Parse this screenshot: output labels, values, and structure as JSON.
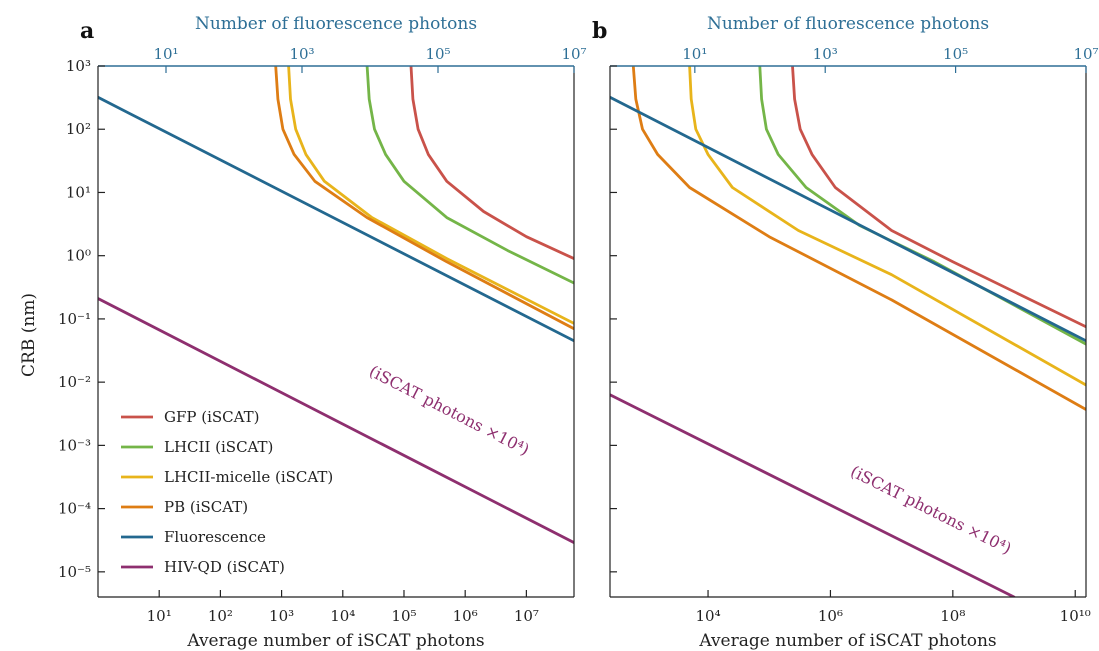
{
  "figure": {
    "ylabel": "CRB (nm)"
  },
  "legend_items": [
    {
      "label": "GFP (iSCAT)",
      "color": "#c9524a"
    },
    {
      "label": "LHCII (iSCAT)",
      "color": "#74b548"
    },
    {
      "label": "LHCII-micelle (iSCAT)",
      "color": "#e8b41b"
    },
    {
      "label": "PB (iSCAT)",
      "color": "#de7d14"
    },
    {
      "label": "Fluorescence",
      "color": "#23688f"
    },
    {
      "label": "HIV-QD (iSCAT)",
      "color": "#8e2f6f"
    }
  ],
  "chart_data": [
    {
      "type": "line",
      "panel_label": "a",
      "xlabel": "Average number of iSCAT photons",
      "x2label": "Number of fluorescence photons",
      "ylabel": "CRB (nm)",
      "xscale": "log",
      "yscale": "log",
      "xlim": [
        1,
        60000000.0
      ],
      "x2lim": [
        1,
        10000000.0
      ],
      "ylim": [
        4e-06,
        1000
      ],
      "x_ticks": [
        {
          "value": 10,
          "label": "10¹"
        },
        {
          "value": 100,
          "label": "10²"
        },
        {
          "value": 1000,
          "label": "10³"
        },
        {
          "value": 10000,
          "label": "10⁴"
        },
        {
          "value": 100000,
          "label": "10⁵"
        },
        {
          "value": 1000000,
          "label": "10⁶"
        },
        {
          "value": 10000000,
          "label": "10⁷"
        }
      ],
      "x2_ticks": [
        {
          "value": 10,
          "label": "10¹"
        },
        {
          "value": 1000,
          "label": "10³"
        },
        {
          "value": 100000,
          "label": "10⁵"
        },
        {
          "value": 10000000,
          "label": "10⁷"
        }
      ],
      "y_ticks": [
        {
          "value": 1e-05,
          "label": "10⁻⁵"
        },
        {
          "value": 0.0001,
          "label": "10⁻⁴"
        },
        {
          "value": 0.001,
          "label": "10⁻³"
        },
        {
          "value": 0.01,
          "label": "10⁻²"
        },
        {
          "value": 0.1,
          "label": "10⁻¹"
        },
        {
          "value": 1,
          "label": "10⁰"
        },
        {
          "value": 10,
          "label": "10¹"
        },
        {
          "value": 100,
          "label": "10²"
        },
        {
          "value": 1000,
          "label": "10³"
        }
      ],
      "series": [
        {
          "name": "GFP (iSCAT)",
          "color": "#c9524a",
          "points": [
            [
              130000.0,
              1000
            ],
            [
              140000.0,
              300
            ],
            [
              170000.0,
              100
            ],
            [
              250000.0,
              40
            ],
            [
              500000.0,
              15
            ],
            [
              2000000.0,
              5
            ],
            [
              10000000.0,
              2
            ],
            [
              60000000.0,
              0.9
            ]
          ]
        },
        {
          "name": "LHCII (iSCAT)",
          "color": "#74b548",
          "points": [
            [
              25000.0,
              1000
            ],
            [
              27000.0,
              300
            ],
            [
              33000.0,
              100
            ],
            [
              50000.0,
              40
            ],
            [
              100000.0,
              15
            ],
            [
              500000.0,
              4
            ],
            [
              5000000.0,
              1.2
            ],
            [
              60000000.0,
              0.37
            ]
          ]
        },
        {
          "name": "LHCII-micelle (iSCAT)",
          "color": "#e8b41b",
          "points": [
            [
              1300,
              1000
            ],
            [
              1400,
              300
            ],
            [
              1700,
              100
            ],
            [
              2500,
              40
            ],
            [
              5000,
              15
            ],
            [
              30000.0,
              4
            ],
            [
              500000.0,
              0.9
            ],
            [
              60000000.0,
              0.085
            ]
          ]
        },
        {
          "name": "PB (iSCAT)",
          "color": "#de7d14",
          "points": [
            [
              800,
              1000
            ],
            [
              870,
              300
            ],
            [
              1050,
              100
            ],
            [
              1600,
              40
            ],
            [
              3500,
              15
            ],
            [
              25000.0,
              4
            ],
            [
              500000.0,
              0.8
            ],
            [
              60000000.0,
              0.07
            ]
          ]
        },
        {
          "name": "Fluorescence",
          "color": "#23688f",
          "points": [
            [
              1,
              320
            ],
            [
              60000000.0,
              0.045
            ]
          ]
        },
        {
          "name": "HIV-QD (iSCAT)",
          "color": "#8e2f6f",
          "points": [
            [
              1,
              0.21
            ],
            [
              60000000.0,
              2.9e-05
            ]
          ]
        }
      ],
      "annotation": {
        "text": "(iSCAT photons ×10⁴)",
        "color": "#8e2f6f",
        "x": 500000.0,
        "y": 0.003
      }
    },
    {
      "type": "line",
      "panel_label": "b",
      "xlabel": "Average number of iSCAT photons",
      "x2label": "Number of fluorescence photons",
      "ylabel": "",
      "xscale": "log",
      "yscale": "log",
      "xlim": [
        250,
        15000000000.0
      ],
      "x2lim": [
        0.5,
        10000000.0
      ],
      "ylim": [
        4e-06,
        1000
      ],
      "x_ticks": [
        {
          "value": 10000,
          "label": "10⁴"
        },
        {
          "value": 1000000,
          "label": "10⁶"
        },
        {
          "value": 100000000,
          "label": "10⁸"
        },
        {
          "value": 10000000000,
          "label": "10¹⁰"
        }
      ],
      "x2_ticks": [
        {
          "value": 10,
          "label": "10¹"
        },
        {
          "value": 1000,
          "label": "10³"
        },
        {
          "value": 100000,
          "label": "10⁵"
        },
        {
          "value": 10000000,
          "label": "10⁷"
        }
      ],
      "y_ticks": [
        {
          "value": 1e-05,
          "label": ""
        },
        {
          "value": 0.0001,
          "label": ""
        },
        {
          "value": 0.001,
          "label": ""
        },
        {
          "value": 0.01,
          "label": ""
        },
        {
          "value": 0.1,
          "label": ""
        },
        {
          "value": 1,
          "label": ""
        },
        {
          "value": 10,
          "label": ""
        },
        {
          "value": 100,
          "label": ""
        },
        {
          "value": 1000,
          "label": ""
        }
      ],
      "series": [
        {
          "name": "GFP (iSCAT)",
          "color": "#c9524a",
          "points": [
            [
              240000.0,
              1000
            ],
            [
              260000.0,
              300
            ],
            [
              320000.0,
              100
            ],
            [
              500000.0,
              40
            ],
            [
              1200000.0,
              12
            ],
            [
              10000000.0,
              2.5
            ],
            [
              100000000.0,
              0.8
            ],
            [
              15000000000.0,
              0.075
            ]
          ]
        },
        {
          "name": "LHCII (iSCAT)",
          "color": "#74b548",
          "points": [
            [
              70000.0,
              1000
            ],
            [
              75000.0,
              300
            ],
            [
              90000.0,
              100
            ],
            [
              140000.0,
              40
            ],
            [
              400000.0,
              12
            ],
            [
              3000000.0,
              3
            ],
            [
              50000000.0,
              0.8
            ],
            [
              15000000000.0,
              0.04
            ]
          ]
        },
        {
          "name": "LHCII-micelle (iSCAT)",
          "color": "#e8b41b",
          "points": [
            [
              5000,
              1000
            ],
            [
              5300,
              300
            ],
            [
              6300,
              100
            ],
            [
              10000.0,
              40
            ],
            [
              25000.0,
              12
            ],
            [
              300000.0,
              2.5
            ],
            [
              10000000.0,
              0.5
            ],
            [
              15000000000.0,
              0.009
            ]
          ]
        },
        {
          "name": "PB (iSCAT)",
          "color": "#de7d14",
          "points": [
            [
              600,
              1000
            ],
            [
              660,
              300
            ],
            [
              850,
              100
            ],
            [
              1500,
              40
            ],
            [
              5000,
              12
            ],
            [
              100000.0,
              2
            ],
            [
              10000000.0,
              0.2
            ],
            [
              15000000000.0,
              0.0037
            ]
          ]
        },
        {
          "name": "Fluorescence",
          "color": "#23688f",
          "points": [
            [
              250,
              320
            ],
            [
              15000000000.0,
              0.045
            ]
          ]
        },
        {
          "name": "HIV-QD (iSCAT)",
          "color": "#8e2f6f",
          "points": [
            [
              250,
              0.0063
            ],
            [
              1000000000.0,
              4e-06
            ]
          ]
        }
      ],
      "annotation": {
        "text": "(iSCAT photons ×10⁴)",
        "color": "#8e2f6f",
        "x": 40000000.0,
        "y": 8e-05
      }
    }
  ]
}
